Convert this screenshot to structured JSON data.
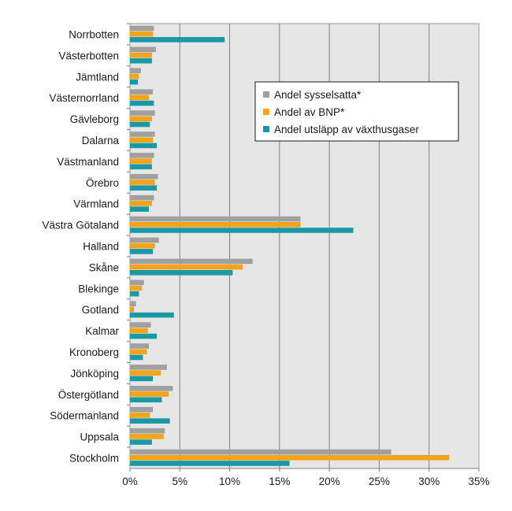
{
  "chart_data": {
    "type": "bar",
    "orientation": "horizontal",
    "title": "",
    "xlabel": "",
    "ylabel": "",
    "xlim": [
      0,
      35
    ],
    "x_ticks": [
      0,
      5,
      10,
      15,
      20,
      25,
      30,
      35
    ],
    "x_tick_labels": [
      "0%",
      "5%",
      "10%",
      "15%",
      "20%",
      "25%",
      "30%",
      "35%"
    ],
    "grid": "vertical",
    "legend_position": "top-right",
    "categories": [
      "Norrbotten",
      "Västerbotten",
      "Jämtland",
      "Västernorrland",
      "Gävleborg",
      "Dalarna",
      "Västmanland",
      "Örebro",
      "Värmland",
      "Västra Götaland",
      "Halland",
      "Skåne",
      "Blekinge",
      "Gotland",
      "Kalmar",
      "Kronoberg",
      "Jönköping",
      "Östergötland",
      "Södermanland",
      "Uppsala",
      "Stockholm"
    ],
    "series": [
      {
        "name": "Andel sysselsatta*",
        "color": "#a0a0a0",
        "values": [
          2.4,
          2.6,
          1.1,
          2.3,
          2.5,
          2.5,
          2.4,
          2.8,
          2.4,
          17.1,
          2.9,
          12.3,
          1.4,
          0.6,
          2.1,
          1.9,
          3.7,
          4.3,
          2.3,
          3.5,
          26.2
        ]
      },
      {
        "name": "Andel av BNP*",
        "color": "#f5a319",
        "values": [
          2.3,
          2.2,
          0.9,
          1.9,
          2.2,
          2.3,
          2.2,
          2.5,
          2.2,
          17.1,
          2.5,
          11.3,
          1.2,
          0.4,
          1.8,
          1.7,
          3.1,
          3.9,
          2.0,
          3.4,
          32.0
        ]
      },
      {
        "name": "Andel utsläpp av växthusgaser",
        "color": "#1a98a6",
        "values": [
          9.5,
          2.2,
          0.8,
          2.4,
          2.0,
          2.7,
          2.2,
          2.7,
          1.9,
          22.4,
          2.3,
          10.3,
          0.9,
          4.4,
          2.7,
          1.3,
          2.3,
          3.2,
          4.0,
          2.2,
          16.0
        ]
      }
    ]
  }
}
